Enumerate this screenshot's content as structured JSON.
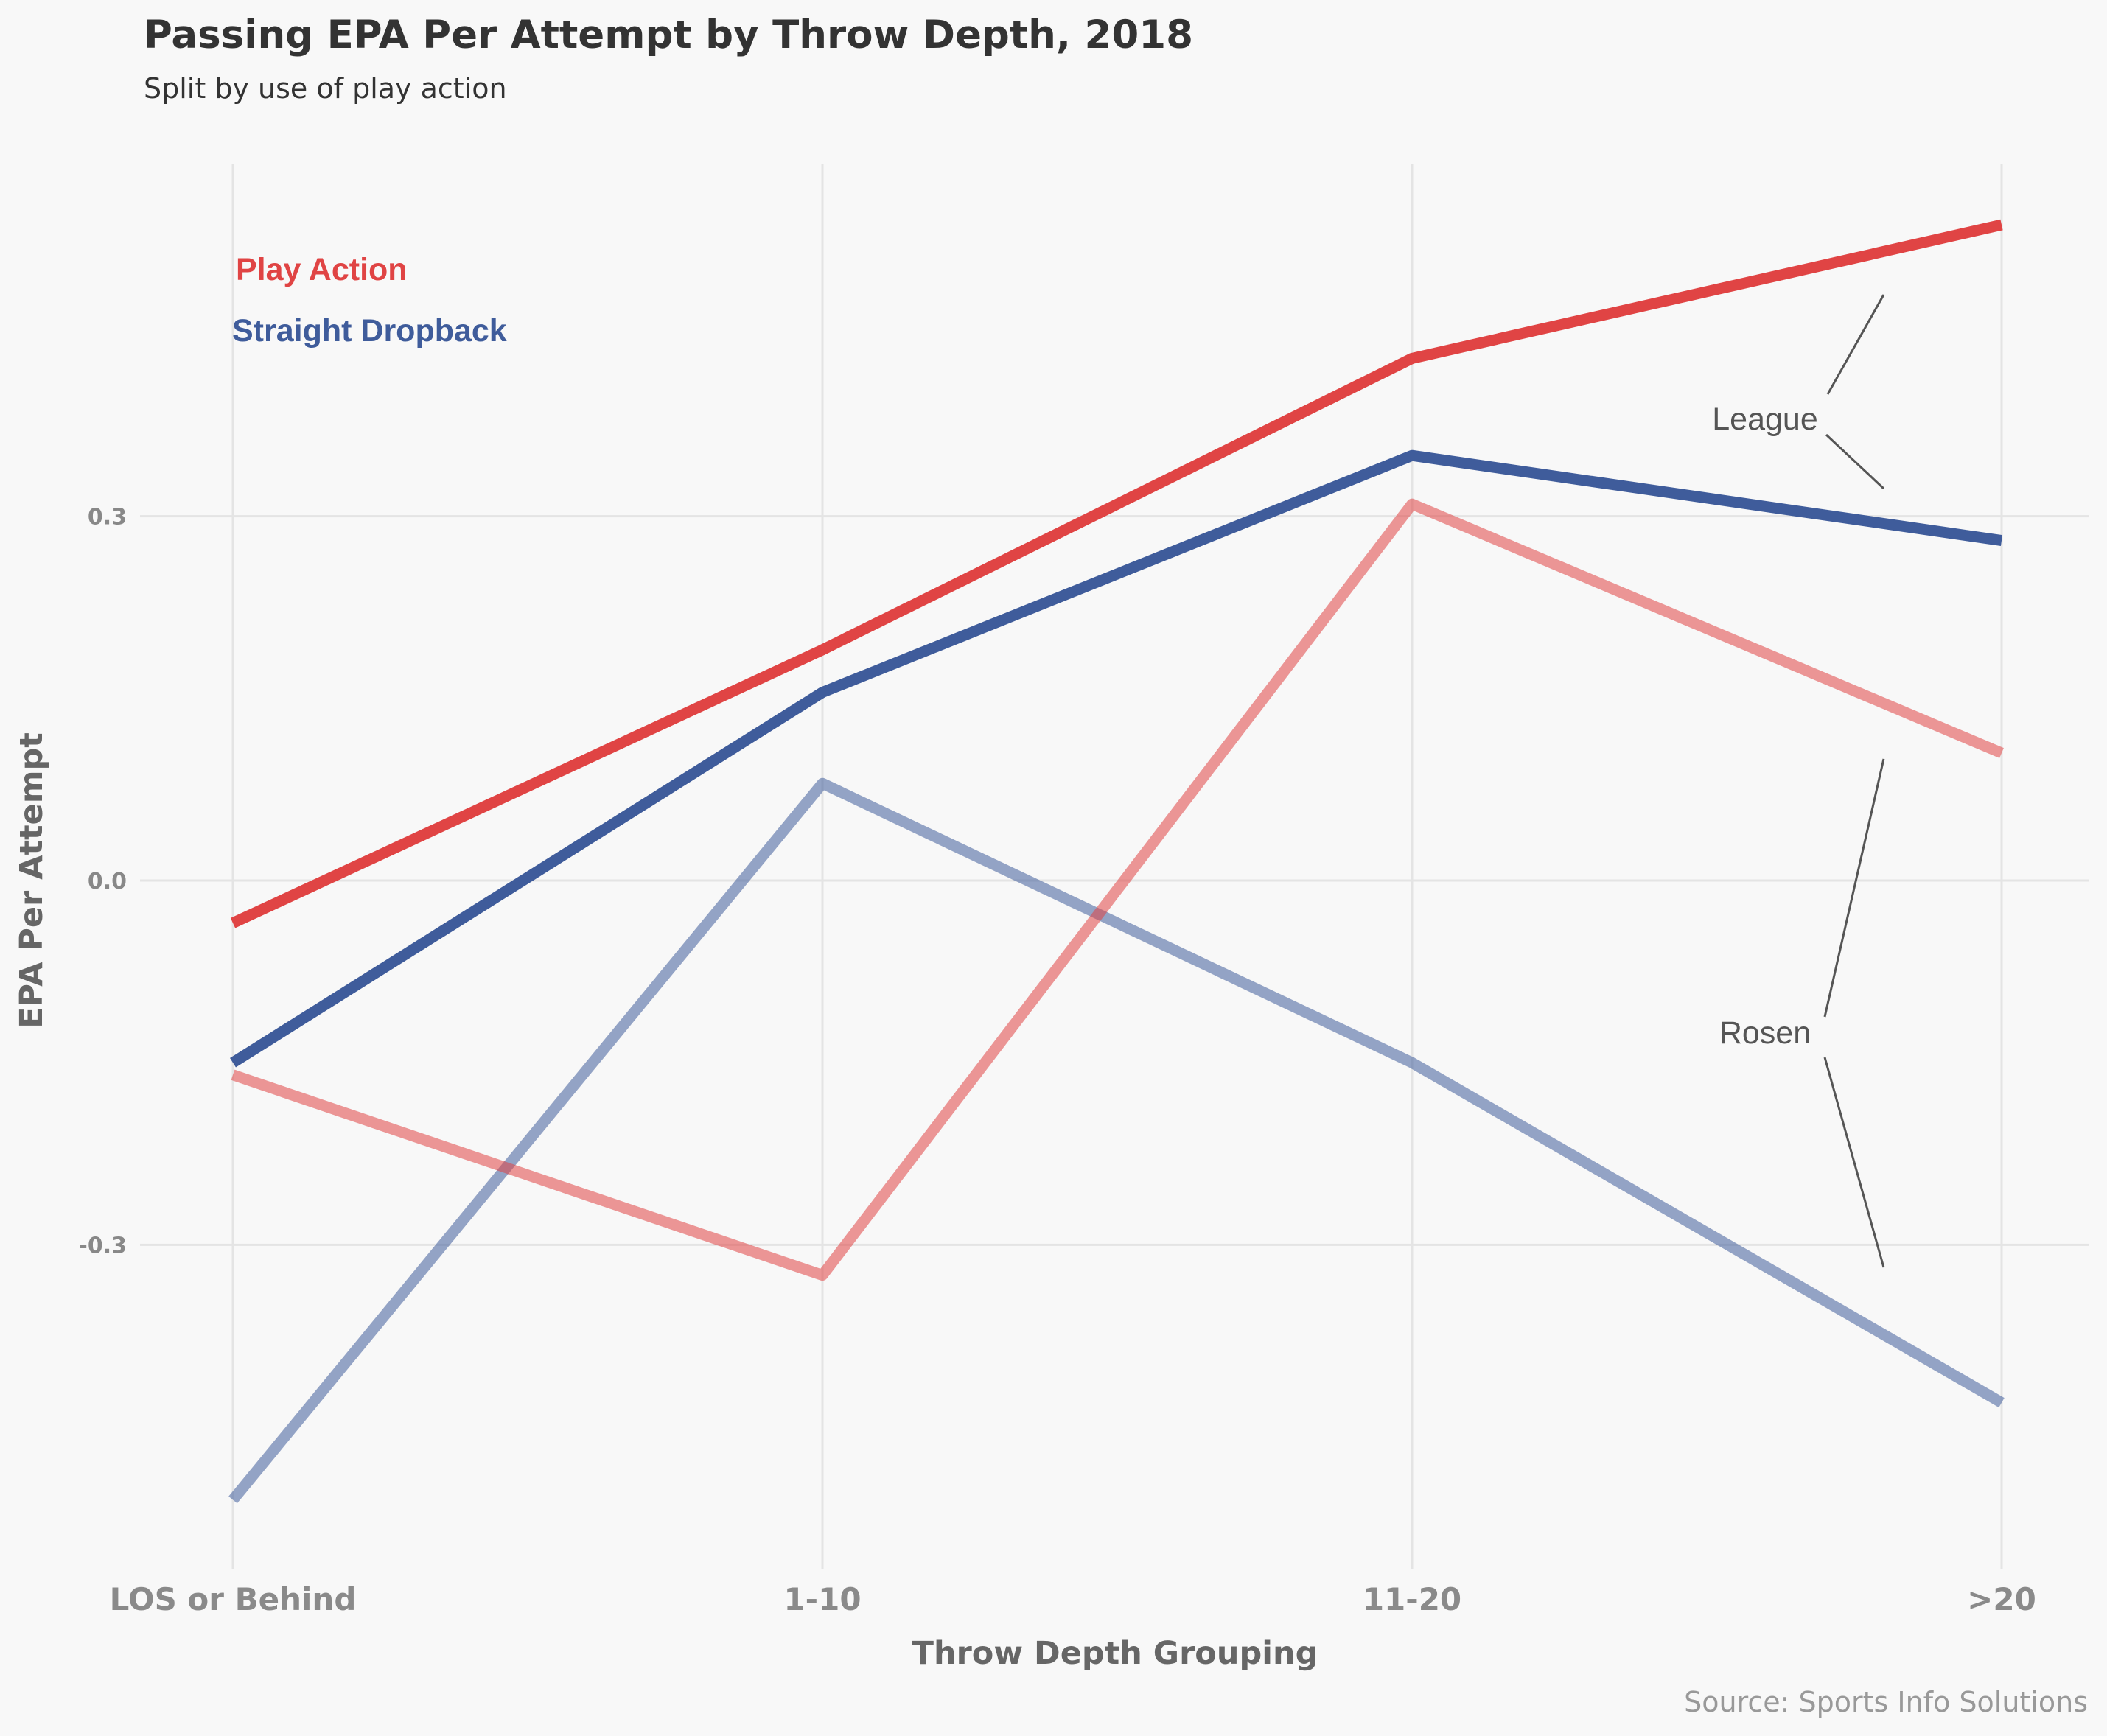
{
  "chart_data": {
    "type": "line",
    "title": "Passing EPA Per Attempt by Throw Depth, 2018",
    "subtitle": "Split by use of play action",
    "xlabel": "Throw Depth Grouping",
    "ylabel": "EPA Per Attempt",
    "source": "Source: Sports Info Solutions",
    "categories": [
      "LOS or Behind",
      "1-10",
      "11-20",
      ">20"
    ],
    "ylim": [
      -0.58,
      0.59
    ],
    "yticks": [
      -0.3,
      0.0,
      0.3
    ],
    "ytick_labels": [
      "-0.3",
      "0.0",
      "0.3"
    ],
    "grid": true,
    "legend": {
      "placement": "top-left",
      "entries": [
        {
          "label": "Play Action",
          "color": "#e04444"
        },
        {
          "label": "Straight Dropback",
          "color": "#3f5c9b"
        }
      ]
    },
    "annotations": [
      {
        "label": "League",
        "refers_to": [
          "League Play Action",
          ">20"
        ]
      },
      {
        "label": "Rosen",
        "refers_to": [
          "Rosen Play Action",
          ">20"
        ]
      }
    ],
    "series": [
      {
        "group": "League",
        "type": "Play Action",
        "color": "#e04444",
        "opacity": 1.0,
        "values": [
          -0.035,
          0.19,
          0.43,
          0.54
        ]
      },
      {
        "group": "League",
        "type": "Straight Dropback",
        "color": "#3f5c9b",
        "opacity": 1.0,
        "values": [
          -0.15,
          0.155,
          0.35,
          0.28
        ]
      },
      {
        "group": "Rosen",
        "type": "Play Action",
        "color": "#e04444",
        "opacity": 0.55,
        "values": [
          -0.16,
          -0.325,
          0.31,
          0.105
        ]
      },
      {
        "group": "Rosen",
        "type": "Straight Dropback",
        "color": "#3f5c9b",
        "opacity": 0.55,
        "values": [
          -0.51,
          0.08,
          -0.15,
          -0.43
        ]
      }
    ]
  }
}
